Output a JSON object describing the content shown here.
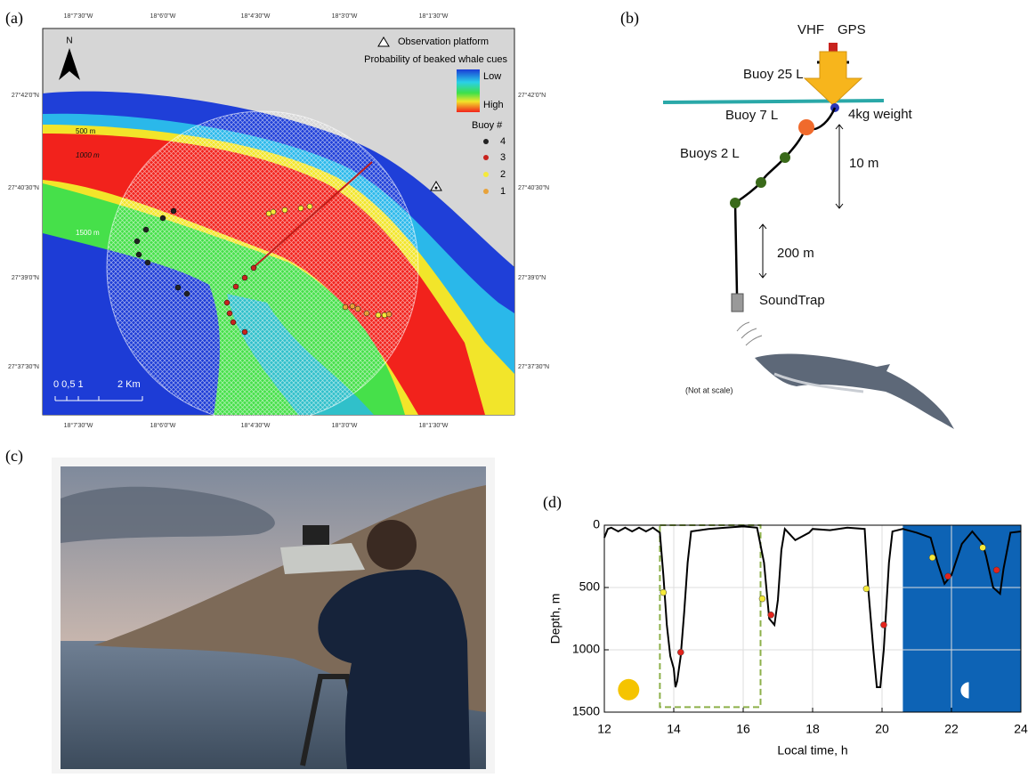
{
  "panel_labels": [
    "(a)",
    "(b)",
    "(c)",
    "(d)"
  ],
  "map": {
    "lon_ticks": [
      "18°7'30\"W",
      "18°6'0\"W",
      "18°4'30\"W",
      "18°3'0\"W",
      "18°1'30\"W"
    ],
    "lat_ticks": [
      "27°42'0\"N",
      "27°40'30\"N",
      "27°39'0\"N",
      "27°37'30\"N"
    ],
    "north": "N",
    "legend": {
      "platform": "Observation platform",
      "probability_title": "Probability of beaked whale cues",
      "low": "Low",
      "high": "High",
      "buoy_title": "Buoy #",
      "buoys": [
        "4",
        "3",
        "2",
        "1"
      ]
    },
    "contours": [
      "500 m",
      "1000 m",
      "1500 m"
    ],
    "scale": {
      "ticks": "0 0,5 1",
      "end": "2 Km"
    }
  },
  "diagram": {
    "vhf": "VHF",
    "gps": "GPS",
    "buoy_25": "Buoy 25 L",
    "buoy_7": "Buoy 7 L",
    "weight": "4kg weight",
    "buoys_2": "Buoys 2 L",
    "dist_10": "10 m",
    "dist_200": "200 m",
    "soundtrap": "SoundTrap",
    "note": "(Not at scale)"
  },
  "chart_data": {
    "type": "line",
    "xlabel": "Local time, h",
    "ylabel": "Depth, m",
    "xlim": [
      12,
      24
    ],
    "xticks": [
      12,
      14,
      16,
      18,
      20,
      22,
      24
    ],
    "ylim": [
      1500,
      0
    ],
    "yticks": [
      0,
      500,
      1000,
      1500
    ],
    "grid": true,
    "shaded_span": [
      20.6,
      24
    ],
    "shade_color": "#0d63b5",
    "highlight_box": {
      "x": [
        13.6,
        16.5
      ],
      "y": [
        0,
        1460
      ],
      "color": "#8db04a"
    },
    "series": [
      {
        "mode": "line",
        "color": "#000000",
        "x": [
          12.0,
          12.1,
          12.2,
          12.4,
          12.6,
          12.8,
          13.0,
          13.2,
          13.4,
          13.6,
          13.7,
          13.8,
          13.9,
          14.0,
          14.05,
          14.1,
          14.2,
          14.3,
          14.4,
          14.5,
          15.0,
          15.5,
          16.0,
          16.4,
          16.6,
          16.75,
          16.9,
          17.0,
          17.1,
          17.2,
          17.5,
          17.9,
          18.0,
          18.5,
          19.0,
          19.5,
          19.6,
          19.75,
          19.85,
          19.95,
          20.05,
          20.2,
          20.3,
          20.6,
          21.0,
          21.4,
          21.6,
          21.8,
          22.0,
          22.3,
          22.6,
          22.9,
          23.0,
          23.2,
          23.4,
          23.5,
          23.7,
          24.0
        ],
        "values": [
          100,
          30,
          20,
          50,
          20,
          50,
          20,
          50,
          20,
          60,
          400,
          800,
          1050,
          1150,
          1300,
          1250,
          1050,
          700,
          300,
          50,
          30,
          20,
          10,
          20,
          300,
          750,
          800,
          600,
          200,
          30,
          120,
          60,
          30,
          40,
          20,
          30,
          500,
          1000,
          1300,
          1300,
          1000,
          300,
          50,
          30,
          60,
          100,
          300,
          470,
          400,
          150,
          50,
          150,
          250,
          500,
          550,
          350,
          60,
          50
        ]
      },
      {
        "mode": "points",
        "color": "#f5ea3a",
        "x": [
          13.7,
          16.55,
          19.55,
          21.45,
          22.9
        ],
        "values": [
          540,
          590,
          510,
          260,
          180
        ]
      },
      {
        "mode": "points",
        "color": "#e3241c",
        "x": [
          14.2,
          16.8,
          20.05,
          21.9,
          23.3
        ],
        "values": [
          1020,
          720,
          800,
          410,
          360
        ]
      }
    ]
  }
}
